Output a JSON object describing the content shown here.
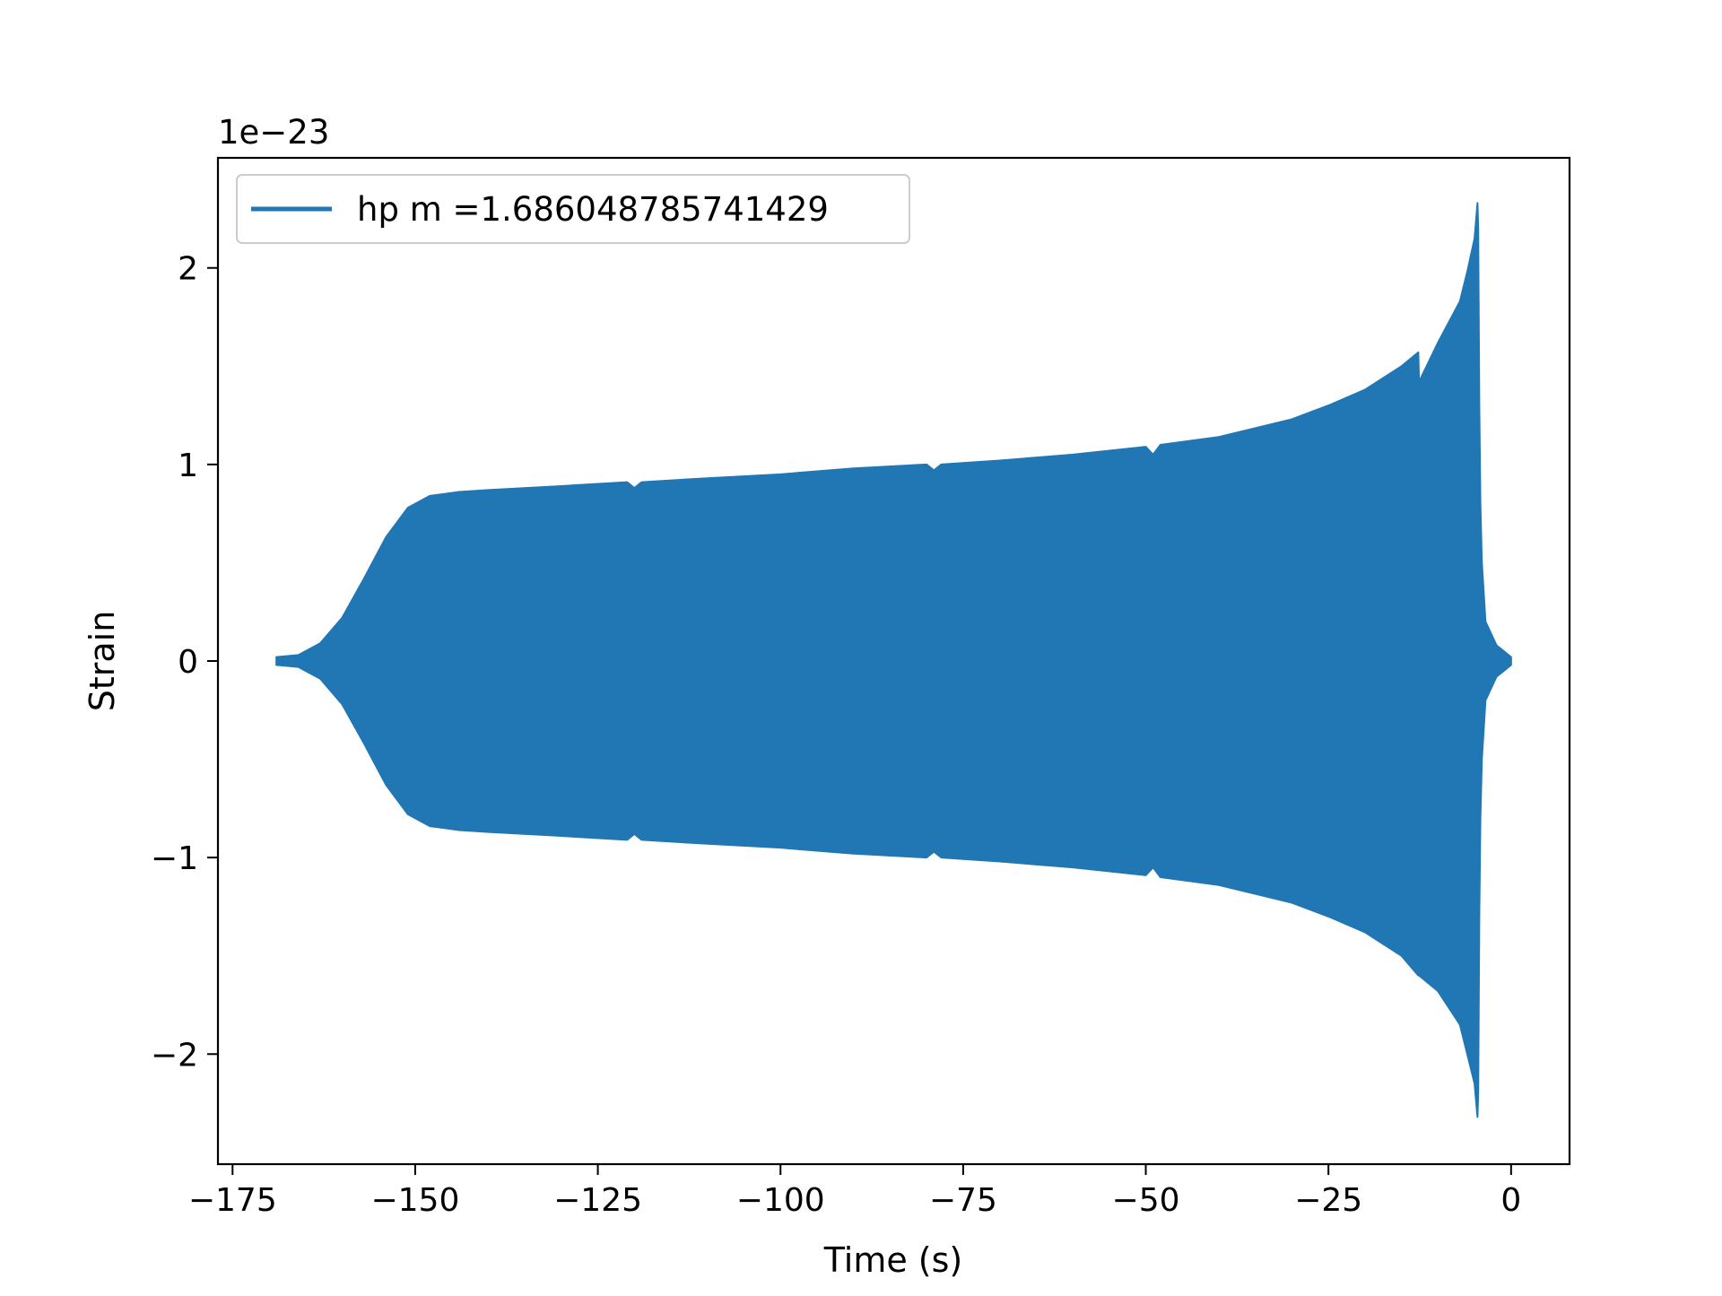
{
  "chart_data": {
    "type": "line",
    "title": "",
    "xlabel": "Time (s)",
    "ylabel": "Strain",
    "y_offset_text": "1e−23",
    "xlim": [
      -177,
      8
    ],
    "ylim": [
      -2.56,
      2.56
    ],
    "y_scale_factor": 1e-23,
    "grid": false,
    "legend_position": "upper left",
    "x_ticks": [
      {
        "value": -175,
        "label": "−175"
      },
      {
        "value": -150,
        "label": "−150"
      },
      {
        "value": -125,
        "label": "−125"
      },
      {
        "value": -100,
        "label": "−100"
      },
      {
        "value": -75,
        "label": "−75"
      },
      {
        "value": -50,
        "label": "−50"
      },
      {
        "value": -25,
        "label": "−25"
      },
      {
        "value": 0,
        "label": "0"
      }
    ],
    "y_ticks": [
      {
        "value": -2,
        "label": "−2"
      },
      {
        "value": -1,
        "label": "−1"
      },
      {
        "value": 0,
        "label": "0"
      },
      {
        "value": 1,
        "label": "1"
      },
      {
        "value": 2,
        "label": "2"
      }
    ],
    "series": [
      {
        "name": "hp m =1.686048785741429",
        "color": "#2077b4",
        "description_type": "oscillating waveform envelope (strain amplitude, units of 1e-23)",
        "envelope": {
          "time": [
            -169,
            -166,
            -163,
            -160,
            -157,
            -154,
            -151,
            -148,
            -146,
            -144,
            -140,
            -130,
            -121,
            -120,
            -119,
            -110,
            -100,
            -90,
            -80,
            -79,
            -78,
            -70,
            -60,
            -50,
            -49,
            -48,
            -40,
            -30,
            -25,
            -20,
            -15,
            -12.7,
            -12.6,
            -10,
            -7,
            -6,
            -5,
            -4.6,
            -4.5,
            -4.35,
            -4.2,
            -4.0,
            -3.5,
            -2,
            -1,
            0
          ],
          "upper": [
            0.02,
            0.03,
            0.09,
            0.22,
            0.42,
            0.63,
            0.78,
            0.84,
            0.85,
            0.86,
            0.87,
            0.89,
            0.91,
            0.88,
            0.91,
            0.93,
            0.95,
            0.98,
            1.0,
            0.97,
            1.0,
            1.02,
            1.05,
            1.09,
            1.05,
            1.1,
            1.14,
            1.23,
            1.3,
            1.38,
            1.5,
            1.57,
            1.42,
            1.62,
            1.83,
            1.98,
            2.15,
            2.33,
            2.2,
            1.3,
            0.8,
            0.5,
            0.2,
            0.08,
            0.05,
            0.02
          ],
          "lower": [
            -0.02,
            -0.03,
            -0.09,
            -0.22,
            -0.42,
            -0.63,
            -0.78,
            -0.84,
            -0.85,
            -0.86,
            -0.87,
            -0.89,
            -0.91,
            -0.88,
            -0.91,
            -0.93,
            -0.95,
            -0.98,
            -1.0,
            -0.97,
            -1.0,
            -1.02,
            -1.05,
            -1.09,
            -1.05,
            -1.1,
            -1.14,
            -1.23,
            -1.3,
            -1.38,
            -1.5,
            -1.6,
            -1.6,
            -1.68,
            -1.85,
            -2.0,
            -2.15,
            -2.32,
            -2.2,
            -1.3,
            -0.8,
            -0.5,
            -0.2,
            -0.08,
            -0.05,
            -0.02
          ]
        }
      }
    ]
  }
}
